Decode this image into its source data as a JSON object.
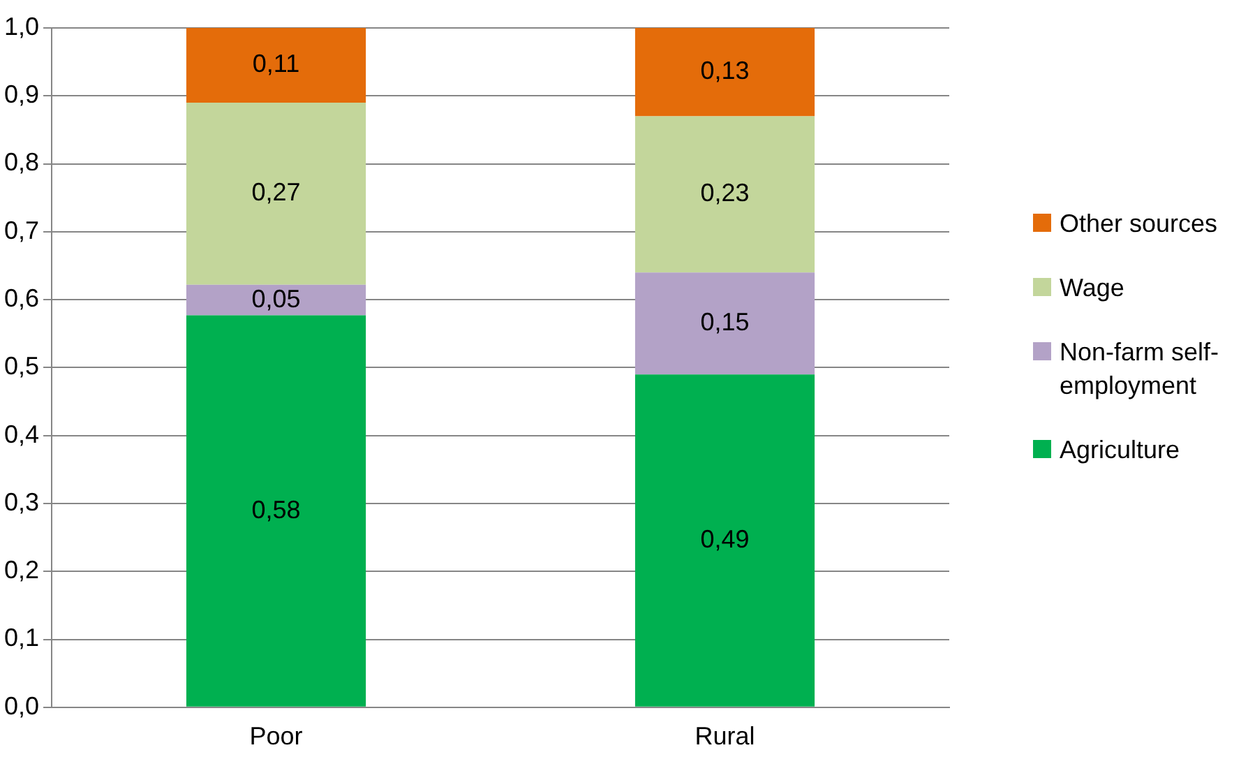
{
  "chart_data": {
    "type": "bar",
    "stacked": true,
    "categories": [
      "Poor",
      "Rural"
    ],
    "series": [
      {
        "name": "Agriculture",
        "color": "#00b050",
        "values": [
          0.577,
          0.49
        ],
        "value_labels": [
          "0,58",
          "0,49"
        ]
      },
      {
        "name": "Non-farm self-employment",
        "color": "#b3a2c7",
        "values": [
          0.045,
          0.15
        ],
        "value_labels": [
          "0,05",
          "0,15"
        ]
      },
      {
        "name": "Wage",
        "color": "#c3d69b",
        "values": [
          0.268,
          0.23
        ],
        "value_labels": [
          "0,27",
          "0,23"
        ]
      },
      {
        "name": "Other sources",
        "color": "#e46c0a",
        "values": [
          0.11,
          0.13
        ],
        "value_labels": [
          "0,11",
          "0,13"
        ]
      }
    ],
    "ylim": [
      0,
      1
    ],
    "yticks": [
      {
        "value": 0,
        "label": "0,0"
      },
      {
        "value": 0.1,
        "label": "0,1"
      },
      {
        "value": 0.2,
        "label": "0,2"
      },
      {
        "value": 0.3,
        "label": "0,3"
      },
      {
        "value": 0.4,
        "label": "0,4"
      },
      {
        "value": 0.5,
        "label": "0,5"
      },
      {
        "value": 0.6,
        "label": "0,6"
      },
      {
        "value": 0.7,
        "label": "0,7"
      },
      {
        "value": 0.8,
        "label": "0,8"
      },
      {
        "value": 0.9,
        "label": "0,9"
      },
      {
        "value": 1,
        "label": "1,0"
      }
    ],
    "grid": "y",
    "legend": "right"
  }
}
